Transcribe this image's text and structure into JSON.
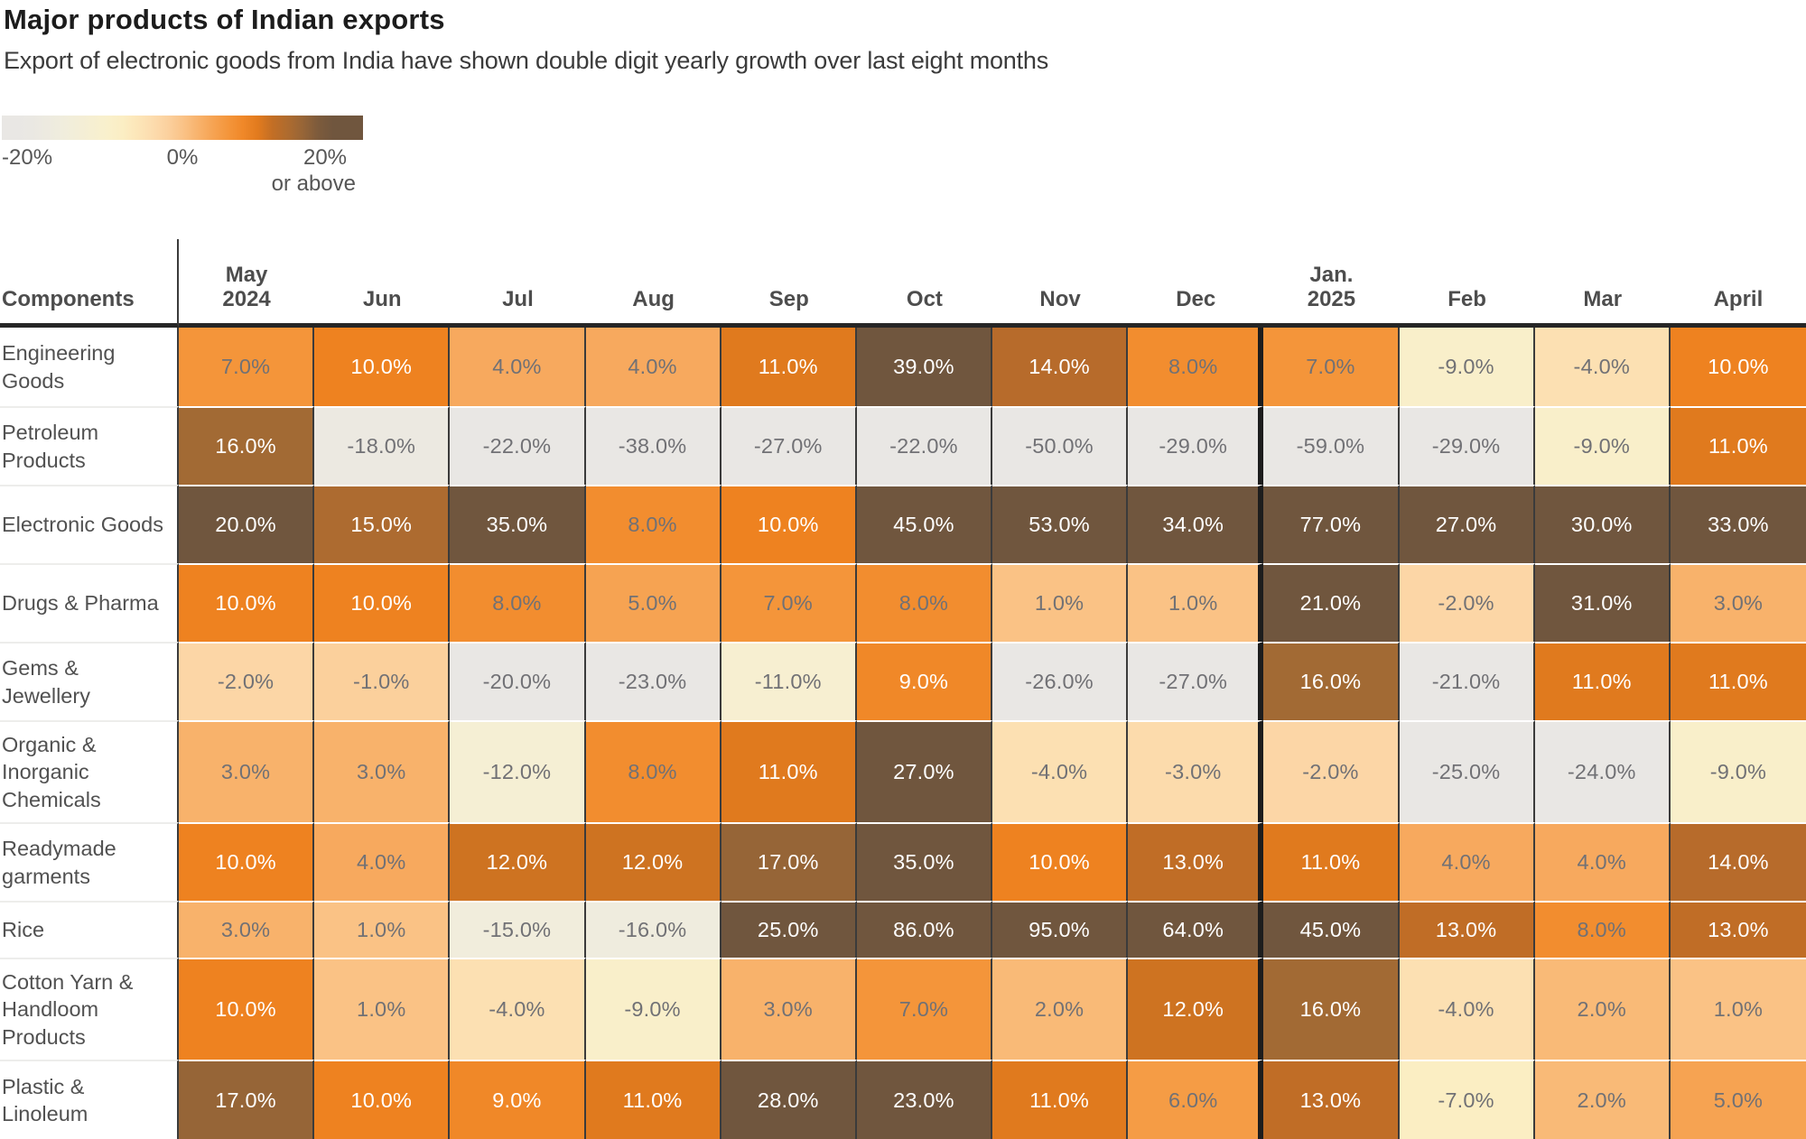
{
  "title": "Major products of Indian exports",
  "subtitle": "Export of electronic goods from India have shown double digit yearly growth over last eight months",
  "legend": {
    "min_label": "-20%",
    "zero_label": "0%",
    "max_label": "20%",
    "max_sublabel": "or above"
  },
  "chart_data": {
    "type": "heatmap",
    "title": "Major products of Indian exports",
    "corner_header": "Components",
    "columns": [
      "May\n2024",
      "Jun",
      "Jul",
      "Aug",
      "Sep",
      "Oct",
      "Nov",
      "Dec",
      "Jan.\n2025",
      "Feb",
      "Mar",
      "April"
    ],
    "year_divider_after_column": "Dec",
    "unit": "percent_yearly_growth",
    "value_format": "one_decimal_percent",
    "rows": [
      {
        "label": "Engineering Goods",
        "values": [
          7,
          10,
          4,
          4,
          11,
          39,
          14,
          8,
          7,
          -9,
          -4,
          10
        ]
      },
      {
        "label": "Petroleum Products",
        "values": [
          16,
          -18,
          -22,
          -38,
          -27,
          -22,
          -50,
          -29,
          -59,
          -29,
          -9,
          11
        ]
      },
      {
        "label": "Electronic Goods",
        "values": [
          20,
          15,
          35,
          8,
          10,
          45,
          53,
          34,
          77,
          27,
          30,
          33
        ]
      },
      {
        "label": "Drugs & Pharma",
        "values": [
          10,
          10,
          8,
          5,
          7,
          8,
          1,
          1,
          21,
          -2,
          31,
          3
        ]
      },
      {
        "label": "Gems & Jewellery",
        "values": [
          -2,
          -1,
          -20,
          -23,
          -11,
          9,
          -26,
          -27,
          16,
          -21,
          11,
          11
        ]
      },
      {
        "label": "Organic & Inorganic Chemicals",
        "values": [
          3,
          3,
          -12,
          8,
          11,
          27,
          -4,
          -3,
          -2,
          -25,
          -24,
          -9
        ]
      },
      {
        "label": "Readymade garments",
        "values": [
          10,
          4,
          12,
          12,
          17,
          35,
          10,
          13,
          11,
          4,
          4,
          14
        ]
      },
      {
        "label": "Rice",
        "values": [
          3,
          1,
          -15,
          -16,
          25,
          86,
          95,
          64,
          45,
          13,
          8,
          13
        ]
      },
      {
        "label": "Cotton Yarn & Handloom Products",
        "values": [
          10,
          1,
          -4,
          -9,
          3,
          7,
          2,
          12,
          16,
          -4,
          2,
          1
        ]
      },
      {
        "label": "Plastic & Linoleum",
        "values": [
          17,
          10,
          9,
          11,
          28,
          23,
          11,
          6,
          13,
          -7,
          2,
          5
        ]
      }
    ],
    "color_scale": {
      "domain": [
        -20,
        20
      ],
      "clamp": true,
      "legend_range": [
        -23.5,
        25
      ],
      "stops": [
        [
          -20,
          "#E9E7E4"
        ],
        [
          -15,
          "#F1EDDC"
        ],
        [
          -10,
          "#F8F0CE"
        ],
        [
          -7,
          "#FBEEC3"
        ],
        [
          -4,
          "#FCE0B2"
        ],
        [
          -2,
          "#FCD6A6"
        ],
        [
          0,
          "#FAC992"
        ],
        [
          2,
          "#F9BA77"
        ],
        [
          4,
          "#F7A95E"
        ],
        [
          6,
          "#F59C45"
        ],
        [
          8,
          "#F28D2F"
        ],
        [
          10,
          "#EE8220"
        ],
        [
          11,
          "#E07A1E"
        ],
        [
          12,
          "#CE7321"
        ],
        [
          13,
          "#C06D26"
        ],
        [
          14,
          "#B76B2B"
        ],
        [
          16,
          "#A26A34"
        ],
        [
          18,
          "#89603A"
        ],
        [
          20,
          "#70563E"
        ]
      ]
    },
    "text_colors": {
      "white_text_min_value": 9,
      "light": "#FFFFFF",
      "dark": "#717175"
    }
  }
}
